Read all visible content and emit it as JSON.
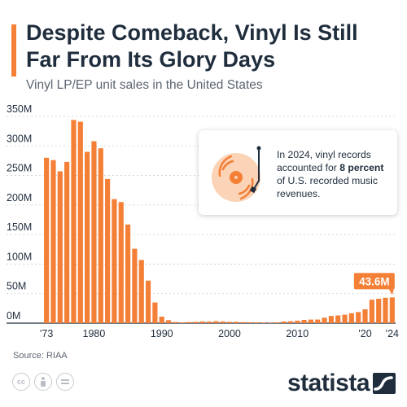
{
  "header": {
    "title": "Despite Comeback, Vinyl Is Still Far From Its Glory Days",
    "subtitle": "Vinyl LP/EP unit sales in the United States"
  },
  "callout": {
    "text_before": "In 2024, vinyl records accounted for ",
    "text_bold": "8 percent",
    "text_after": " of U.S. recorded music revenues.",
    "icon": "vinyl-record-icon"
  },
  "footer": {
    "source": "Source: RIAA",
    "license_icons": [
      "cc-icon",
      "attribution-icon",
      "no-derivatives-icon"
    ],
    "brand": "statista"
  },
  "colors": {
    "bar": "#f47f36",
    "accent": "#f47f36",
    "title": "#1f2d3d",
    "grid": "#c9ced3"
  },
  "chart_data": {
    "type": "bar",
    "title": "Despite Comeback, Vinyl Is Still Far From Its Glory Days",
    "subtitle": "Vinyl LP/EP unit sales in the United States",
    "ylim": [
      0,
      350
    ],
    "yunit": "M",
    "yticks": [
      "0M",
      "50M",
      "100M",
      "150M",
      "200M",
      "250M",
      "300M",
      "350M"
    ],
    "xtick_labels": [
      {
        "year": 1973,
        "label": "'73"
      },
      {
        "year": 1980,
        "label": "1980"
      },
      {
        "year": 1990,
        "label": "1990"
      },
      {
        "year": 2000,
        "label": "2000"
      },
      {
        "year": 2010,
        "label": "2010"
      },
      {
        "year": 2020,
        "label": "'20"
      },
      {
        "year": 2024,
        "label": "'24"
      }
    ],
    "grid": true,
    "categories": [
      1973,
      1974,
      1975,
      1976,
      1977,
      1978,
      1979,
      1980,
      1981,
      1982,
      1983,
      1984,
      1985,
      1986,
      1987,
      1988,
      1989,
      1990,
      1991,
      1992,
      1993,
      1994,
      1995,
      1996,
      1997,
      1998,
      1999,
      2000,
      2001,
      2002,
      2003,
      2004,
      2005,
      2006,
      2007,
      2008,
      2009,
      2010,
      2011,
      2012,
      2013,
      2014,
      2015,
      2016,
      2017,
      2018,
      2019,
      2020,
      2021,
      2022,
      2023,
      2024
    ],
    "values": [
      280,
      276,
      257,
      273,
      344,
      341,
      290,
      308,
      296,
      244,
      210,
      205,
      167,
      126,
      107,
      72,
      35,
      11,
      5,
      2,
      1.2,
      1.9,
      2.2,
      2.9,
      2.7,
      3.4,
      2.9,
      2.2,
      2.3,
      1.7,
      1.5,
      1.4,
      1.0,
      0.9,
      1.3,
      2.9,
      3.2,
      4.2,
      5.5,
      6.1,
      6.1,
      9.2,
      12.2,
      13.1,
      14.3,
      16.8,
      18.8,
      23.5,
      39.7,
      41.3,
      43.0,
      43.6
    ],
    "annotations": [
      {
        "year": 2024,
        "label": "43.6M"
      }
    ]
  }
}
